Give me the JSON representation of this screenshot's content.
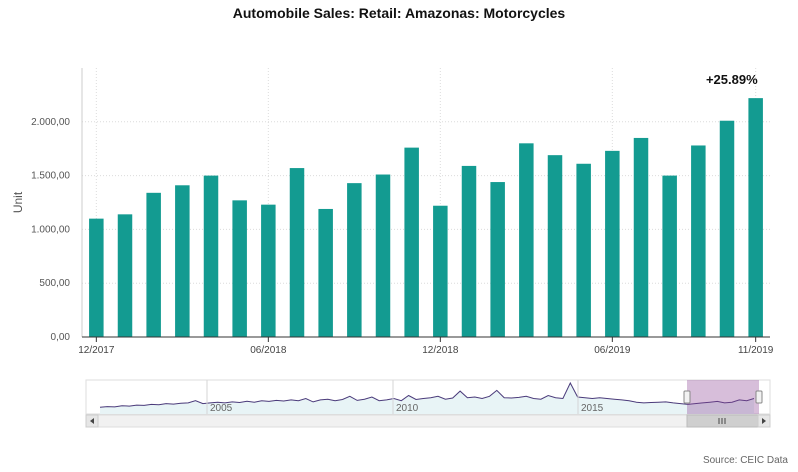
{
  "chart_data": {
    "type": "bar",
    "title": "Automobile Sales: Retail: Amazonas: Motorcycles",
    "ylabel": "Unit",
    "ylim": [
      0,
      2500
    ],
    "yticks": [
      0,
      500,
      1000,
      1500,
      2000
    ],
    "ytick_labels": [
      "0,00",
      "500,00",
      "1.000,00",
      "1.500,00",
      "2.000,00"
    ],
    "xtick_labels": [
      {
        "label": "12/2017",
        "index": 0
      },
      {
        "label": "06/2018",
        "index": 6
      },
      {
        "label": "12/2018",
        "index": 12
      },
      {
        "label": "06/2019",
        "index": 18
      },
      {
        "label": "11/2019",
        "index": 23
      }
    ],
    "categories": [
      "12/2017",
      "01/2018",
      "02/2018",
      "03/2018",
      "04/2018",
      "05/2018",
      "06/2018",
      "07/2018",
      "08/2018",
      "09/2018",
      "10/2018",
      "11/2018",
      "12/2018",
      "01/2019",
      "02/2019",
      "03/2019",
      "04/2019",
      "05/2019",
      "06/2019",
      "07/2019",
      "08/2019",
      "09/2019",
      "10/2019",
      "11/2019"
    ],
    "values": [
      1100,
      1140,
      1340,
      1410,
      1500,
      1270,
      1230,
      1570,
      1190,
      1430,
      1510,
      1760,
      1220,
      1590,
      1440,
      1800,
      1690,
      1610,
      1730,
      1850,
      1500,
      1780,
      2010,
      2220
    ],
    "bar_color": "#139b91",
    "grid": true,
    "annotation": "+25.89%",
    "navigator": {
      "year_labels": [
        "2005",
        "2010",
        "2015"
      ],
      "series_values": [
        0.25,
        0.3,
        0.28,
        0.35,
        0.33,
        0.4,
        0.38,
        0.45,
        0.42,
        0.5,
        0.47,
        0.52,
        0.55,
        0.7,
        0.5,
        0.55,
        0.6,
        0.55,
        0.62,
        0.58,
        0.66,
        0.6,
        0.7,
        0.65,
        0.72,
        0.68,
        0.75,
        0.7,
        0.85,
        0.62,
        0.75,
        0.8,
        0.7,
        0.78,
        1.0,
        0.72,
        0.8,
        0.95,
        0.7,
        0.75,
        0.85,
        0.7,
        1.05,
        0.78,
        0.85,
        0.9,
        1.0,
        0.8,
        0.88,
        1.35,
        0.9,
        0.95,
        0.85,
        1.0,
        1.4,
        0.9,
        0.88,
        0.92,
        1.0,
        0.85,
        0.8,
        1.05,
        0.9,
        0.85,
        1.9,
        0.95,
        0.9,
        0.85,
        0.9,
        0.85,
        0.8,
        0.75,
        0.7,
        0.6,
        0.55,
        0.58,
        0.6,
        0.62,
        0.55,
        0.5,
        0.45,
        0.5,
        0.55,
        0.6,
        0.65,
        0.55,
        0.6,
        0.75,
        0.7,
        0.85
      ]
    }
  },
  "source": "Source: CEIC Data"
}
